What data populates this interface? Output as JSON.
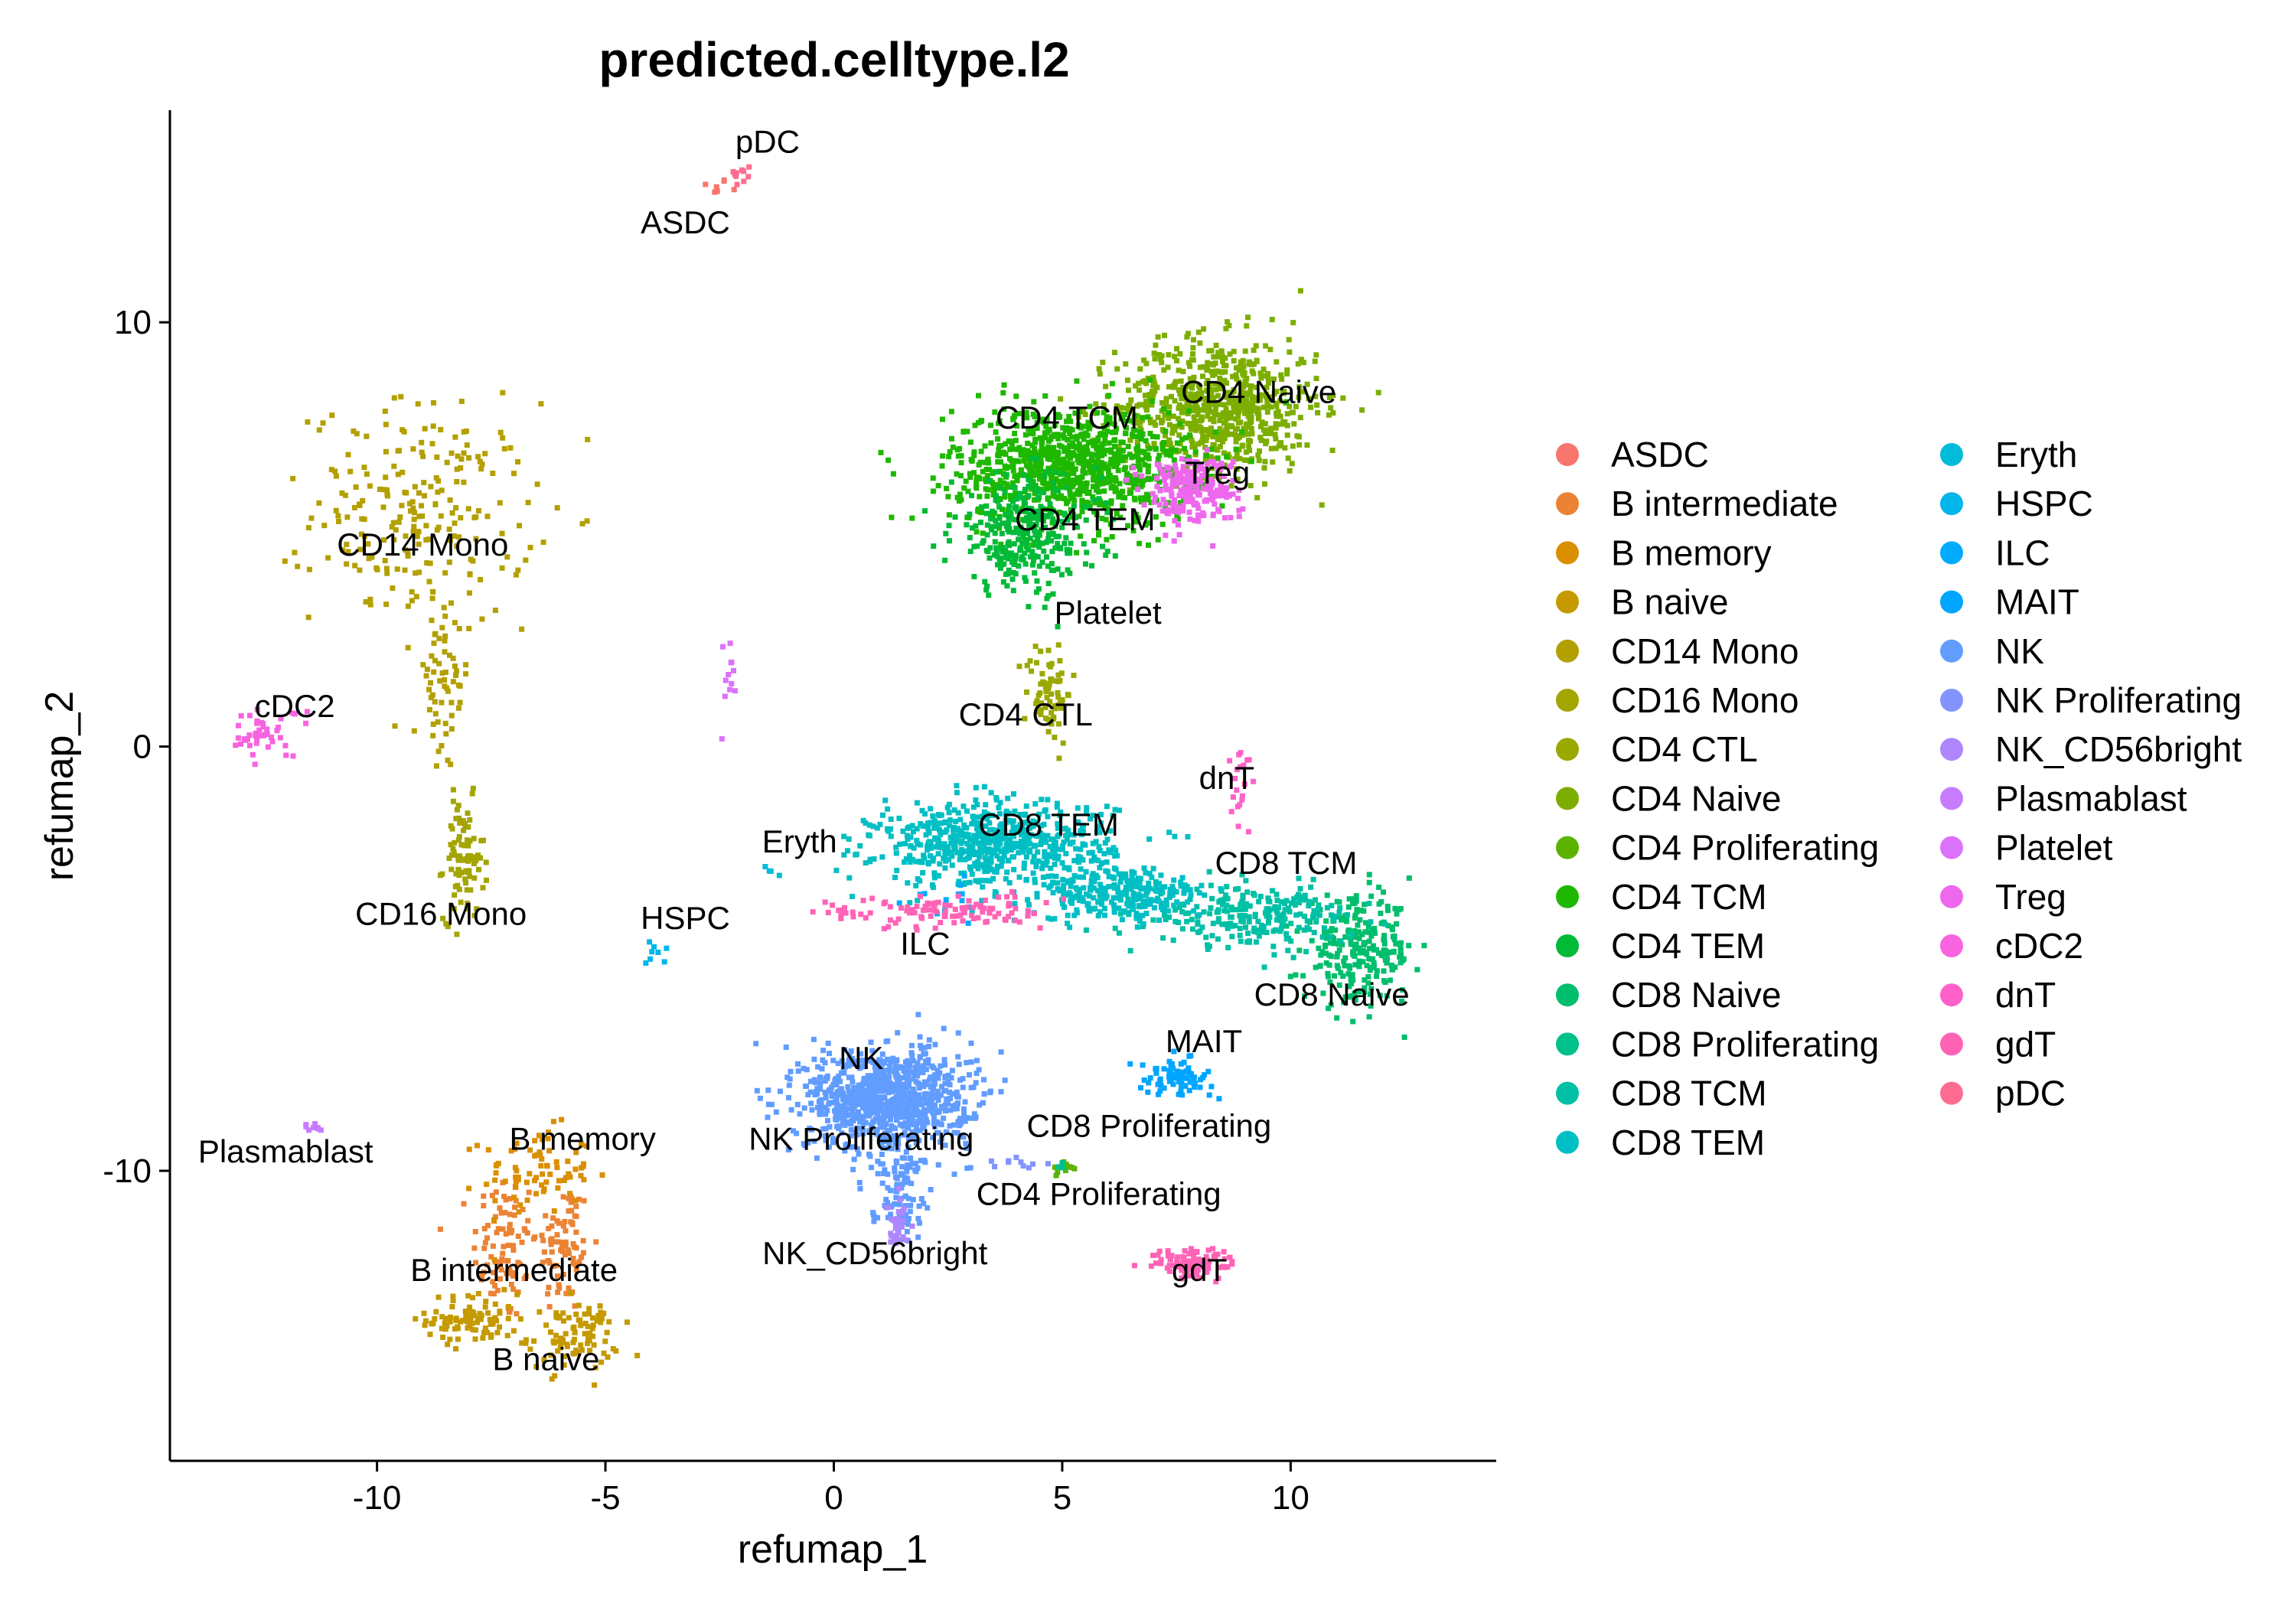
{
  "chart_data": {
    "type": "scatter",
    "title": "predicted.celltype.l2",
    "xlabel": "refumap_1",
    "ylabel": "refumap_2",
    "xlim": [
      -14.5,
      14.5
    ],
    "ylim": [
      -16.8,
      15
    ],
    "xticks": [
      -10,
      -5,
      0,
      5,
      10
    ],
    "yticks": [
      -10,
      0,
      10
    ],
    "xtick_labels": [
      "-10",
      "-5",
      "0",
      "5",
      "10"
    ],
    "ytick_labels": [
      "-10",
      "0",
      "10"
    ],
    "grid": false,
    "legend_position": "right",
    "series": [
      {
        "name": "ASDC",
        "color": "#F8766D",
        "clusters": [
          {
            "x": -2.6,
            "y": 13.2,
            "sx": 0.15,
            "sy": 0.1,
            "n": 8
          }
        ]
      },
      {
        "name": "B intermediate",
        "color": "#EB8335",
        "clusters": [
          {
            "x": -7.2,
            "y": -11.8,
            "sx": 0.35,
            "sy": 0.9,
            "n": 90
          },
          {
            "x": -5.9,
            "y": -11.8,
            "sx": 0.3,
            "sy": 0.8,
            "n": 80
          }
        ]
      },
      {
        "name": "B memory",
        "color": "#DA8F00",
        "clusters": [
          {
            "x": -6.5,
            "y": -10.0,
            "sx": 0.6,
            "sy": 0.5,
            "n": 80
          }
        ]
      },
      {
        "name": "B naive",
        "color": "#C49A00",
        "clusters": [
          {
            "x": -7.9,
            "y": -13.5,
            "sx": 0.5,
            "sy": 0.3,
            "n": 90
          },
          {
            "x": -5.7,
            "y": -13.9,
            "sx": 0.5,
            "sy": 0.4,
            "n": 90
          }
        ]
      },
      {
        "name": "CD14 Mono",
        "color": "#B3A000",
        "clusters": [
          {
            "x": -9.0,
            "y": 5.5,
            "sx": 1.2,
            "sy": 1.3,
            "n": 230
          },
          {
            "x": -8.6,
            "y": 1.2,
            "sx": 0.3,
            "sy": 1.0,
            "n": 60
          }
        ]
      },
      {
        "name": "CD16 Mono",
        "color": "#A3A500",
        "clusters": [
          {
            "x": -8.1,
            "y": -2.7,
            "sx": 0.22,
            "sy": 0.7,
            "n": 90
          }
        ]
      },
      {
        "name": "CD4 CTL",
        "color": "#9AA800",
        "clusters": [
          {
            "x": 4.7,
            "y": 1.3,
            "sx": 0.25,
            "sy": 0.6,
            "n": 70
          }
        ]
      },
      {
        "name": "CD4 Naive",
        "color": "#7CAE00",
        "clusters": [
          {
            "x": 8.4,
            "y": 8.0,
            "sx": 1.1,
            "sy": 0.8,
            "n": 700
          }
        ]
      },
      {
        "name": "CD4 Proliferating",
        "color": "#5BB300",
        "clusters": [
          {
            "x": 5.1,
            "y": -9.9,
            "sx": 0.2,
            "sy": 0.08,
            "n": 12
          }
        ]
      },
      {
        "name": "CD4 TCM",
        "color": "#1FB800",
        "clusters": [
          {
            "x": 5.2,
            "y": 6.6,
            "sx": 1.3,
            "sy": 0.7,
            "n": 900
          }
        ]
      },
      {
        "name": "CD4 TEM",
        "color": "#00BA38",
        "clusters": [
          {
            "x": 4.2,
            "y": 5.0,
            "sx": 0.8,
            "sy": 0.7,
            "n": 300
          }
        ]
      },
      {
        "name": "CD8 Naive",
        "color": "#00BE6C",
        "clusters": [
          {
            "x": 11.5,
            "y": -4.8,
            "sx": 0.6,
            "sy": 0.6,
            "n": 250
          }
        ]
      },
      {
        "name": "CD8 Proliferating",
        "color": "#00C08B",
        "clusters": [
          {
            "x": 4.9,
            "y": -9.9,
            "sx": 0.1,
            "sy": 0.05,
            "n": 4
          }
        ]
      },
      {
        "name": "CD8 TCM",
        "color": "#00C0A5",
        "clusters": [
          {
            "x": 9.2,
            "y": -4.0,
            "sx": 1.1,
            "sy": 0.35,
            "n": 250
          }
        ]
      },
      {
        "name": "CD8 TEM",
        "color": "#00BFC4",
        "clusters": [
          {
            "x": 3.5,
            "y": -2.3,
            "sx": 1.3,
            "sy": 0.5,
            "n": 650
          },
          {
            "x": 6.3,
            "y": -3.5,
            "sx": 0.9,
            "sy": 0.3,
            "n": 250
          }
        ]
      },
      {
        "name": "Eryth",
        "color": "#00BBDA",
        "clusters": [
          {
            "x": -1.4,
            "y": -2.9,
            "sx": 0.05,
            "sy": 0.05,
            "n": 3
          }
        ]
      },
      {
        "name": "HSPC",
        "color": "#00B6EB",
        "clusters": [
          {
            "x": -3.9,
            "y": -4.8,
            "sx": 0.15,
            "sy": 0.15,
            "n": 8
          }
        ]
      },
      {
        "name": "ILC",
        "color": "#00ABFD",
        "clusters": [
          {
            "x": 2.5,
            "y": -3.6,
            "sx": 0.4,
            "sy": 0.3,
            "n": 15
          }
        ]
      },
      {
        "name": "MAIT",
        "color": "#00A5FF",
        "clusters": [
          {
            "x": 7.5,
            "y": -7.8,
            "sx": 0.4,
            "sy": 0.2,
            "n": 80
          }
        ]
      },
      {
        "name": "NK",
        "color": "#619CFF",
        "clusters": [
          {
            "x": 1.2,
            "y": -8.3,
            "sx": 0.9,
            "sy": 0.6,
            "n": 900
          },
          {
            "x": 1.4,
            "y": -10.3,
            "sx": 0.3,
            "sy": 0.6,
            "n": 100
          }
        ]
      },
      {
        "name": "NK Proliferating",
        "color": "#8494FF",
        "clusters": [
          {
            "x": 4.1,
            "y": -9.8,
            "sx": 0.35,
            "sy": 0.08,
            "n": 10
          }
        ]
      },
      {
        "name": "NK_CD56bright",
        "color": "#AE87FF",
        "clusters": [
          {
            "x": 1.4,
            "y": -11.3,
            "sx": 0.12,
            "sy": 0.3,
            "n": 30
          }
        ]
      },
      {
        "name": "Plasmablast",
        "color": "#C77CFF",
        "clusters": [
          {
            "x": -11.3,
            "y": -9.0,
            "sx": 0.2,
            "sy": 0.1,
            "n": 8
          }
        ]
      },
      {
        "name": "Platelet",
        "color": "#DB72FB",
        "clusters": [
          {
            "x": -2.3,
            "y": 1.7,
            "sx": 0.2,
            "sy": 0.5,
            "n": 12
          }
        ]
      },
      {
        "name": "Treg",
        "color": "#ED68ED",
        "clusters": [
          {
            "x": 7.8,
            "y": 6.1,
            "sx": 0.5,
            "sy": 0.4,
            "n": 220
          }
        ]
      },
      {
        "name": "cDC2",
        "color": "#F863DF",
        "clusters": [
          {
            "x": -12.5,
            "y": 0.3,
            "sx": 0.45,
            "sy": 0.3,
            "n": 45
          }
        ]
      },
      {
        "name": "dnT",
        "color": "#FF61C9",
        "clusters": [
          {
            "x": 8.9,
            "y": -0.9,
            "sx": 0.15,
            "sy": 0.5,
            "n": 20
          }
        ]
      },
      {
        "name": "gdT",
        "color": "#FF63B6",
        "clusters": [
          {
            "x": 7.9,
            "y": -12.2,
            "sx": 0.45,
            "sy": 0.18,
            "n": 100
          },
          {
            "x": 2.2,
            "y": -3.9,
            "sx": 1.2,
            "sy": 0.2,
            "n": 110
          }
        ]
      },
      {
        "name": "pDC",
        "color": "#FF6C91",
        "clusters": [
          {
            "x": -2.1,
            "y": 13.4,
            "sx": 0.15,
            "sy": 0.15,
            "n": 10
          }
        ]
      }
    ],
    "cluster_labels": [
      {
        "text": "pDC",
        "x": -1.45,
        "y": 14.0
      },
      {
        "text": "ASDC",
        "x": -3.25,
        "y": 12.1
      },
      {
        "text": "CD14 Mono",
        "x": -9.0,
        "y": 4.5
      },
      {
        "text": "cDC2",
        "x": -11.8,
        "y": 0.7
      },
      {
        "text": "CD16 Mono",
        "x": -8.6,
        "y": -4.2
      },
      {
        "text": "Eryth",
        "x": -0.75,
        "y": -2.5
      },
      {
        "text": "HSPC",
        "x": -3.25,
        "y": -4.3
      },
      {
        "text": "ILC",
        "x": 2.0,
        "y": -4.9
      },
      {
        "text": "CD4 TCM",
        "x": 5.1,
        "y": 7.5
      },
      {
        "text": "CD4 Naive",
        "x": 9.3,
        "y": 8.1
      },
      {
        "text": "Treg",
        "x": 8.4,
        "y": 6.2
      },
      {
        "text": "CD4 TEM",
        "x": 5.5,
        "y": 5.1
      },
      {
        "text": "Platelet",
        "x": 6.0,
        "y": 2.9
      },
      {
        "text": "CD4 CTL",
        "x": 4.2,
        "y": 0.5
      },
      {
        "text": "dnT",
        "x": 8.6,
        "y": -1.0
      },
      {
        "text": "CD8 TEM",
        "x": 4.7,
        "y": -2.1
      },
      {
        "text": "CD8 TCM",
        "x": 9.9,
        "y": -3.0
      },
      {
        "text": "CD8 Naive",
        "x": 10.9,
        "y": -6.1
      },
      {
        "text": "MAIT",
        "x": 8.1,
        "y": -7.2
      },
      {
        "text": "NK",
        "x": 0.6,
        "y": -7.6
      },
      {
        "text": "NK Proliferating",
        "x": 0.6,
        "y": -9.5
      },
      {
        "text": "CD8 Proliferating",
        "x": 6.9,
        "y": -9.2
      },
      {
        "text": "CD4 Proliferating",
        "x": 5.8,
        "y": -10.8
      },
      {
        "text": "NK_CD56bright",
        "x": 0.9,
        "y": -12.2
      },
      {
        "text": "gdT",
        "x": 8.0,
        "y": -12.6
      },
      {
        "text": "Plasmablast",
        "x": -12.0,
        "y": -9.8
      },
      {
        "text": "B memory",
        "x": -5.5,
        "y": -9.5
      },
      {
        "text": "B intermediate",
        "x": -7.0,
        "y": -12.6
      },
      {
        "text": "B naive",
        "x": -6.3,
        "y": -14.7
      }
    ]
  }
}
